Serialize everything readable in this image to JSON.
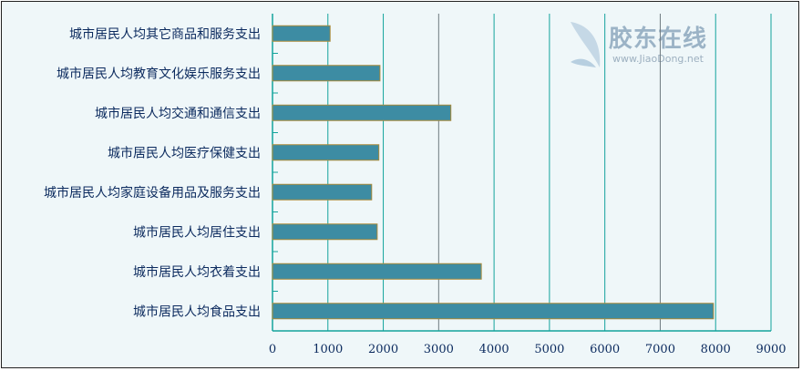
{
  "chart_data": {
    "type": "bar",
    "orientation": "horizontal",
    "categories": [
      "城市居民人均其它商品和服务支出",
      "城市居民人均教育文化娱乐服务支出",
      "城市居民人均交通和通信支出",
      "城市居民人均医疗保健支出",
      "城市居民人均家庭设备用品及服务支出",
      "城市居民人均居住支出",
      "城市居民人均衣着支出",
      "城市居民人均食品支出"
    ],
    "values": [
      1040,
      1940,
      3220,
      1920,
      1790,
      1890,
      3770,
      7960
    ],
    "xlim": [
      0,
      9000
    ],
    "xticks": [
      "0",
      "1000",
      "2000",
      "3000",
      "4000",
      "5000",
      "6000",
      "7000",
      "8000",
      "9000"
    ],
    "grid": true,
    "colors": {
      "bar": "#3d8ca3",
      "bar_border": "#a88a3a",
      "grid": "#13a39c",
      "background": "#eff7f9"
    }
  },
  "watermark": {
    "name": "胶东在线",
    "url": "www.JiaoDong.net"
  }
}
